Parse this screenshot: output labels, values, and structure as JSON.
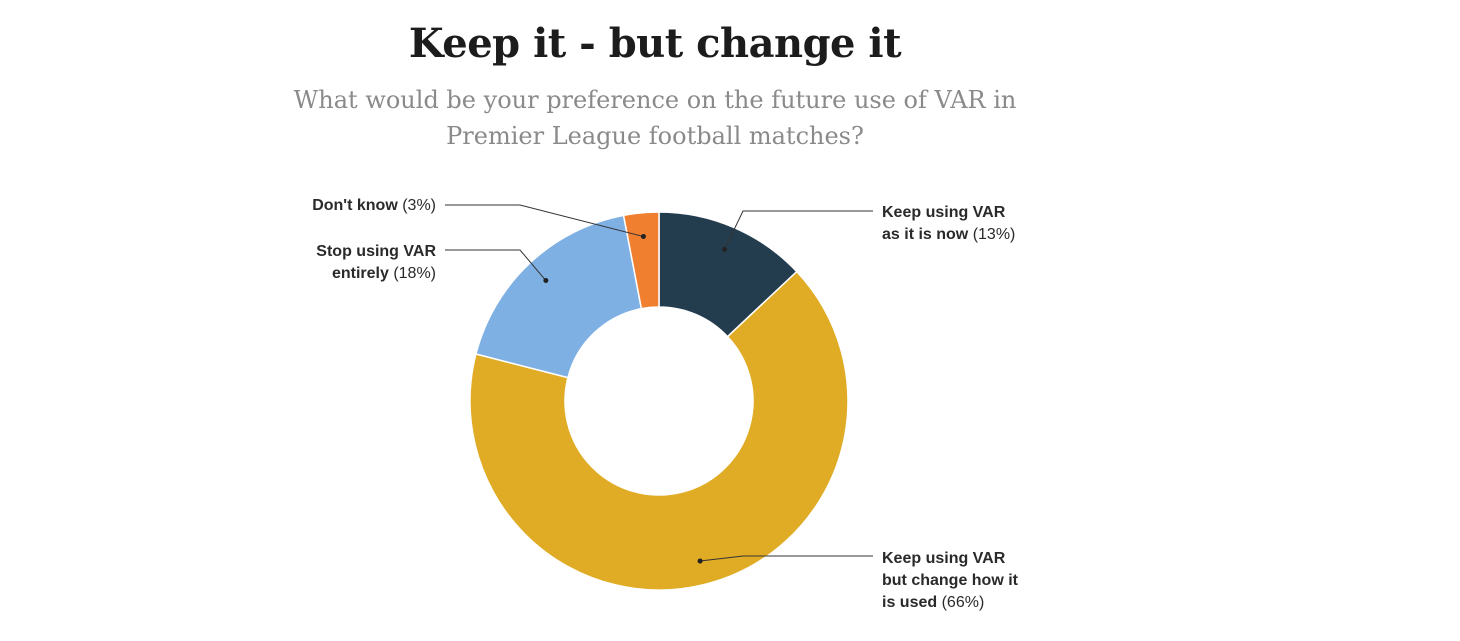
{
  "chart_data": {
    "type": "pie",
    "title": "Keep it - but change it",
    "subtitle_lines": [
      "What would be your preference on the future use of VAR in",
      "Premier League football matches?"
    ],
    "donut": true,
    "slices": [
      {
        "label_lines": [
          "Keep using VAR",
          "as it is now"
        ],
        "pct_text": "(13%)",
        "value": 13,
        "color": "#233d4f"
      },
      {
        "label_lines": [
          "Keep using VAR",
          "but change how it",
          "is used"
        ],
        "pct_text": "(66%)",
        "value": 66,
        "color": "#e0ac26"
      },
      {
        "label_lines": [
          "Stop using VAR",
          "entirely"
        ],
        "pct_text": "(18%)",
        "value": 18,
        "color": "#7fb0e3"
      },
      {
        "label_lines": [
          "Don't know"
        ],
        "pct_text": "(3%)",
        "value": 3,
        "color": "#f07f30"
      }
    ]
  }
}
